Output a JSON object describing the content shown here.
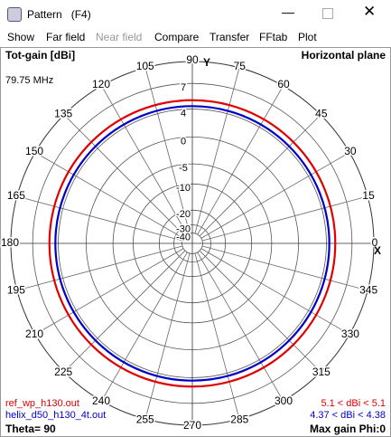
{
  "window": {
    "title": "Pattern   (F4)",
    "menu": [
      "Show",
      "Far field",
      "Near field",
      "Compare",
      "Transfer",
      "FFtab",
      "Plot"
    ]
  },
  "plot": {
    "gain_title": "Tot-gain [dBi]",
    "plane": "Horizontal plane",
    "frequency": "79.75 MHz",
    "radial_ticks": [
      7,
      4,
      0,
      -5,
      -10,
      -20,
      -30,
      -40
    ],
    "angle_ticks": [
      0,
      15,
      30,
      45,
      60,
      75,
      90,
      105,
      120,
      135,
      150,
      165,
      180,
      195,
      210,
      225,
      240,
      255,
      270,
      285,
      300,
      315,
      330,
      345
    ],
    "y_axis": "Y",
    "x_axis": "X",
    "traces": [
      {
        "name": "ref_wp_h130.out",
        "color": "#e00000",
        "gain": 5.1,
        "gain_label": "5.1 < dBi < 5.1"
      },
      {
        "name": "helix_d50_h130_4t.out",
        "color": "#0000c8",
        "gain": 4.37,
        "gain_label": "4.37 < dBi < 4.38"
      }
    ],
    "theta": "Theta= 90",
    "max_gain": "Max gain Phi:0"
  }
}
